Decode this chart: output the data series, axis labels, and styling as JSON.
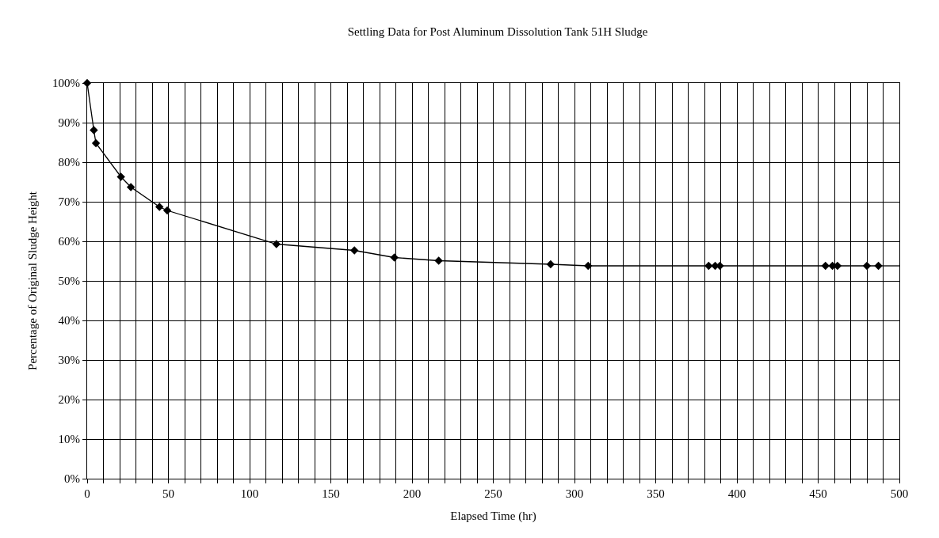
{
  "chart_data": {
    "type": "line",
    "title": "Settling Data for Post Aluminum Dissolution Tank 51H Sludge",
    "xlabel": "Elapsed Time (hr)",
    "ylabel": "Percentage of Original Sludge Height",
    "series": [
      {
        "color": "#000000",
        "marker": "diamond",
        "x": [
          0,
          4.1,
          5.4,
          20.8,
          26.9,
          44.5,
          49.3,
          116.5,
          164.5,
          189.1,
          216.4,
          285.3,
          308.4,
          382.6,
          386.6,
          389.5,
          454.5,
          458.8,
          461.9,
          480,
          487.1
        ],
        "values": [
          100,
          88.1,
          84.8,
          76.3,
          73.7,
          68.7,
          67.8,
          59.3,
          57.7,
          55.9,
          55.1,
          54.2,
          53.8,
          53.8,
          53.8,
          53.8,
          53.8,
          53.8,
          53.8,
          53.8,
          53.8
        ]
      },
      {
        "color": "#000000",
        "marker": "none",
        "x": [
          487.1,
          500
        ],
        "values": [
          53.8,
          53.8
        ]
      }
    ],
    "xlim": [
      0,
      500
    ],
    "xticks": [
      0,
      {
        "value": 10,
        "label": null
      },
      {
        "value": 20,
        "label": null
      },
      {
        "value": 30,
        "label": null
      },
      {
        "value": 40,
        "label": null
      },
      50,
      {
        "value": 60,
        "label": null
      },
      {
        "value": 70,
        "label": null
      },
      {
        "value": 80,
        "label": null
      },
      {
        "value": 90,
        "label": null
      },
      100,
      {
        "value": 110,
        "label": null
      },
      {
        "value": 120,
        "label": null
      },
      {
        "value": 130,
        "label": null
      },
      {
        "value": 140,
        "label": null
      },
      150,
      {
        "value": 160,
        "label": null
      },
      {
        "value": 170,
        "label": null
      },
      {
        "value": 180,
        "label": null
      },
      {
        "value": 190,
        "label": null
      },
      200,
      {
        "value": 210,
        "label": null
      },
      {
        "value": 220,
        "label": null
      },
      {
        "value": 230,
        "label": null
      },
      {
        "value": 240,
        "label": null
      },
      250,
      {
        "value": 260,
        "label": null
      },
      {
        "value": 270,
        "label": null
      },
      {
        "value": 280,
        "label": null
      },
      {
        "value": 290,
        "label": null
      },
      300,
      {
        "value": 310,
        "label": null
      },
      {
        "value": 320,
        "label": null
      },
      {
        "value": 330,
        "label": null
      },
      {
        "value": 340,
        "label": null
      },
      350,
      {
        "value": 360,
        "label": null
      },
      {
        "value": 370,
        "label": null
      },
      {
        "value": 380,
        "label": null
      },
      {
        "value": 390,
        "label": null
      },
      400,
      {
        "value": 410,
        "label": null
      },
      {
        "value": 420,
        "label": null
      },
      {
        "value": 430,
        "label": null
      },
      {
        "value": 440,
        "label": null
      },
      450,
      {
        "value": 460,
        "label": null
      },
      {
        "value": 470,
        "label": null
      },
      {
        "value": 480,
        "label": null
      },
      {
        "value": 490,
        "label": null
      },
      500
    ],
    "ylim": [
      0,
      100
    ],
    "yticks": [
      {
        "value": 0,
        "label": "0%"
      },
      {
        "value": 10,
        "label": "10%"
      },
      {
        "value": 20,
        "label": "20%"
      },
      {
        "value": 30,
        "label": "30%"
      },
      {
        "value": 40,
        "label": "40%"
      },
      {
        "value": 50,
        "label": "50%"
      },
      {
        "value": 60,
        "label": "60%"
      },
      {
        "value": 70,
        "label": "70%"
      },
      {
        "value": 80,
        "label": "80%"
      },
      {
        "value": 90,
        "label": "90%"
      },
      {
        "value": 100,
        "label": "100%"
      }
    ],
    "grid": true,
    "line_style": "solid"
  }
}
